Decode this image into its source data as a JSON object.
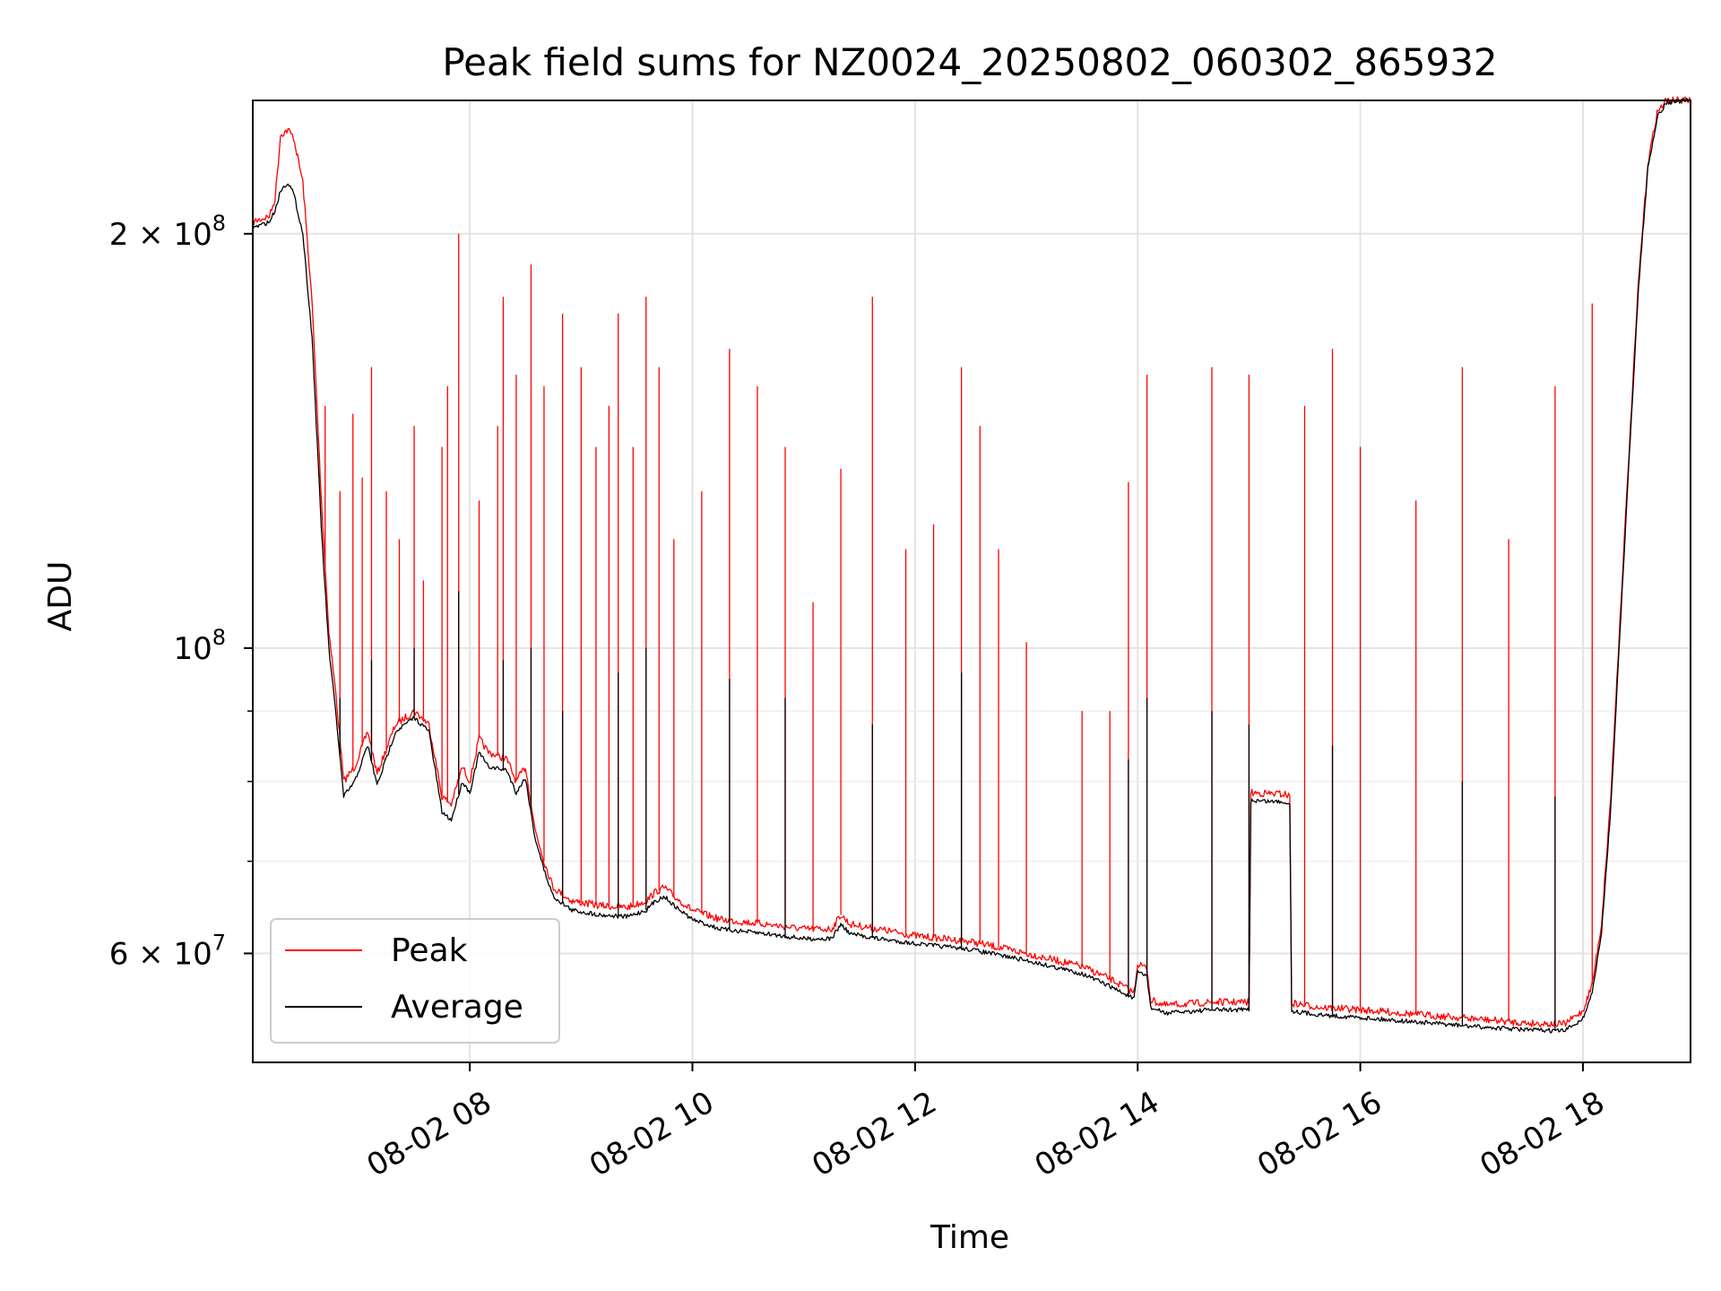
{
  "chart_data": {
    "type": "line",
    "title": "Peak field sums for NZ0024_20250802_060302_865932",
    "xlabel": "Time",
    "ylabel": "ADU",
    "yscale": "log",
    "grid": true,
    "legend_placement": "lower-left",
    "xlim": [
      "2025-08-02 06:03",
      "2025-08-02 18:58"
    ],
    "ylim": [
      50000000,
      250000000
    ],
    "x_ticks": [
      {
        "value": "2025-08-02 08:00",
        "label": "08-02 08"
      },
      {
        "value": "2025-08-02 10:00",
        "label": "08-02 10"
      },
      {
        "value": "2025-08-02 12:00",
        "label": "08-02 12"
      },
      {
        "value": "2025-08-02 14:00",
        "label": "08-02 14"
      },
      {
        "value": "2025-08-02 16:00",
        "label": "08-02 16"
      },
      {
        "value": "2025-08-02 18:00",
        "label": "08-02 18"
      }
    ],
    "y_ticks": [
      {
        "value": 60000000,
        "label": "6 × 10",
        "exp": "7"
      },
      {
        "value": 100000000,
        "label": "10",
        "exp": "8"
      },
      {
        "value": 200000000,
        "label": "2 × 10",
        "exp": "8"
      }
    ],
    "series": [
      {
        "name": "Peak",
        "color": "#ff0000",
        "points": [
          [
            "2025-08-02 06:03",
            204000000
          ],
          [
            "2025-08-02 06:12",
            206000000
          ],
          [
            "2025-08-02 06:15",
            212000000
          ],
          [
            "2025-08-02 06:18",
            236000000
          ],
          [
            "2025-08-02 06:22",
            238000000
          ],
          [
            "2025-08-02 06:25",
            235000000
          ],
          [
            "2025-08-02 06:30",
            218000000
          ],
          [
            "2025-08-02 06:35",
            178000000
          ],
          [
            "2025-08-02 06:40",
            128000000
          ],
          [
            "2025-08-02 06:44",
            103000000
          ],
          [
            "2025-08-02 06:48",
            92000000
          ],
          [
            "2025-08-02 06:52",
            80000000
          ],
          [
            "2025-08-02 06:58",
            82000000
          ],
          [
            "2025-08-02 07:05",
            87000000
          ],
          [
            "2025-08-02 07:10",
            81000000
          ],
          [
            "2025-08-02 07:20",
            88000000
          ],
          [
            "2025-08-02 07:30",
            90000000
          ],
          [
            "2025-08-02 07:38",
            88000000
          ],
          [
            "2025-08-02 07:45",
            78000000
          ],
          [
            "2025-08-02 07:50",
            77000000
          ],
          [
            "2025-08-02 07:56",
            82000000
          ],
          [
            "2025-08-02 08:00",
            80000000
          ],
          [
            "2025-08-02 08:05",
            86000000
          ],
          [
            "2025-08-02 08:10",
            84000000
          ],
          [
            "2025-08-02 08:20",
            83000000
          ],
          [
            "2025-08-02 08:25",
            80000000
          ],
          [
            "2025-08-02 08:30",
            82000000
          ],
          [
            "2025-08-02 08:35",
            74000000
          ],
          [
            "2025-08-02 08:40",
            70000000
          ],
          [
            "2025-08-02 08:45",
            67000000
          ],
          [
            "2025-08-02 08:55",
            65500000
          ],
          [
            "2025-08-02 09:10",
            65000000
          ],
          [
            "2025-08-02 09:25",
            64800000
          ],
          [
            "2025-08-02 09:35",
            65500000
          ],
          [
            "2025-08-02 09:40",
            66500000
          ],
          [
            "2025-08-02 09:45",
            67000000
          ],
          [
            "2025-08-02 09:50",
            66000000
          ],
          [
            "2025-08-02 10:00",
            64500000
          ],
          [
            "2025-08-02 10:15",
            63500000
          ],
          [
            "2025-08-02 10:40",
            63000000
          ],
          [
            "2025-08-02 11:00",
            62500000
          ],
          [
            "2025-08-02 11:15",
            62500000
          ],
          [
            "2025-08-02 11:20",
            64000000
          ],
          [
            "2025-08-02 11:25",
            63000000
          ],
          [
            "2025-08-02 11:40",
            62500000
          ],
          [
            "2025-08-02 12:00",
            61800000
          ],
          [
            "2025-08-02 12:30",
            61200000
          ],
          [
            "2025-08-02 13:00",
            60000000
          ],
          [
            "2025-08-02 13:30",
            58700000
          ],
          [
            "2025-08-02 13:45",
            57500000
          ],
          [
            "2025-08-02 13:58",
            56200000
          ],
          [
            "2025-08-02 14:00",
            59000000
          ],
          [
            "2025-08-02 14:05",
            58500000
          ],
          [
            "2025-08-02 14:07",
            55500000
          ],
          [
            "2025-08-02 14:15",
            55000000
          ],
          [
            "2025-08-02 14:40",
            55300000
          ],
          [
            "2025-08-02 15:00",
            55300000
          ],
          [
            "2025-08-02 15:01",
            78500000
          ],
          [
            "2025-08-02 15:20",
            78300000
          ],
          [
            "2025-08-02 15:22",
            78000000
          ],
          [
            "2025-08-02 15:23",
            55200000
          ],
          [
            "2025-08-02 15:40",
            54800000
          ],
          [
            "2025-08-02 16:00",
            54600000
          ],
          [
            "2025-08-02 16:30",
            54200000
          ],
          [
            "2025-08-02 17:00",
            53800000
          ],
          [
            "2025-08-02 17:30",
            53400000
          ],
          [
            "2025-08-02 17:50",
            53300000
          ],
          [
            "2025-08-02 18:00",
            54500000
          ],
          [
            "2025-08-02 18:05",
            57000000
          ],
          [
            "2025-08-02 18:10",
            63000000
          ],
          [
            "2025-08-02 18:15",
            78000000
          ],
          [
            "2025-08-02 18:20",
            105000000
          ],
          [
            "2025-08-02 18:25",
            140000000
          ],
          [
            "2025-08-02 18:30",
            185000000
          ],
          [
            "2025-08-02 18:35",
            225000000
          ],
          [
            "2025-08-02 18:40",
            245000000
          ],
          [
            "2025-08-02 18:45",
            250000000
          ],
          [
            "2025-08-02 18:58",
            250000000
          ]
        ],
        "spikes": [
          [
            "2025-08-02 06:42",
            150000000
          ],
          [
            "2025-08-02 06:50",
            130000000
          ],
          [
            "2025-08-02 06:57",
            148000000
          ],
          [
            "2025-08-02 07:02",
            133000000
          ],
          [
            "2025-08-02 07:07",
            160000000
          ],
          [
            "2025-08-02 07:15",
            130000000
          ],
          [
            "2025-08-02 07:22",
            120000000
          ],
          [
            "2025-08-02 07:30",
            145000000
          ],
          [
            "2025-08-02 07:35",
            112000000
          ],
          [
            "2025-08-02 07:45",
            140000000
          ],
          [
            "2025-08-02 07:48",
            155000000
          ],
          [
            "2025-08-02 07:54",
            200000000
          ],
          [
            "2025-08-02 08:05",
            128000000
          ],
          [
            "2025-08-02 08:15",
            145000000
          ],
          [
            "2025-08-02 08:18",
            180000000
          ],
          [
            "2025-08-02 08:25",
            158000000
          ],
          [
            "2025-08-02 08:33",
            190000000
          ],
          [
            "2025-08-02 08:40",
            155000000
          ],
          [
            "2025-08-02 08:50",
            175000000
          ],
          [
            "2025-08-02 09:00",
            160000000
          ],
          [
            "2025-08-02 09:08",
            140000000
          ],
          [
            "2025-08-02 09:15",
            150000000
          ],
          [
            "2025-08-02 09:20",
            175000000
          ],
          [
            "2025-08-02 09:28",
            140000000
          ],
          [
            "2025-08-02 09:35",
            180000000
          ],
          [
            "2025-08-02 09:42",
            160000000
          ],
          [
            "2025-08-02 09:50",
            120000000
          ],
          [
            "2025-08-02 10:05",
            130000000
          ],
          [
            "2025-08-02 10:20",
            165000000
          ],
          [
            "2025-08-02 10:35",
            155000000
          ],
          [
            "2025-08-02 10:50",
            140000000
          ],
          [
            "2025-08-02 11:05",
            108000000
          ],
          [
            "2025-08-02 11:20",
            135000000
          ],
          [
            "2025-08-02 11:37",
            180000000
          ],
          [
            "2025-08-02 11:55",
            118000000
          ],
          [
            "2025-08-02 12:10",
            123000000
          ],
          [
            "2025-08-02 12:25",
            160000000
          ],
          [
            "2025-08-02 12:35",
            145000000
          ],
          [
            "2025-08-02 12:45",
            118000000
          ],
          [
            "2025-08-02 13:00",
            101000000
          ],
          [
            "2025-08-02 13:30",
            90000000
          ],
          [
            "2025-08-02 13:45",
            90000000
          ],
          [
            "2025-08-02 13:55",
            132000000
          ],
          [
            "2025-08-02 14:05",
            158000000
          ],
          [
            "2025-08-02 14:40",
            160000000
          ],
          [
            "2025-08-02 15:00",
            158000000
          ],
          [
            "2025-08-02 15:30",
            150000000
          ],
          [
            "2025-08-02 15:45",
            165000000
          ],
          [
            "2025-08-02 16:00",
            140000000
          ],
          [
            "2025-08-02 16:30",
            128000000
          ],
          [
            "2025-08-02 16:55",
            160000000
          ],
          [
            "2025-08-02 17:20",
            120000000
          ],
          [
            "2025-08-02 17:45",
            155000000
          ],
          [
            "2025-08-02 18:05",
            178000000
          ]
        ]
      },
      {
        "name": "Average",
        "color": "#000000",
        "points": [
          [
            "2025-08-02 06:03",
            202000000
          ],
          [
            "2025-08-02 06:12",
            204000000
          ],
          [
            "2025-08-02 06:15",
            208000000
          ],
          [
            "2025-08-02 06:18",
            215000000
          ],
          [
            "2025-08-02 06:22",
            218000000
          ],
          [
            "2025-08-02 06:25",
            214000000
          ],
          [
            "2025-08-02 06:30",
            200000000
          ],
          [
            "2025-08-02 06:35",
            168000000
          ],
          [
            "2025-08-02 06:40",
            122000000
          ],
          [
            "2025-08-02 06:44",
            100000000
          ],
          [
            "2025-08-02 06:48",
            89000000
          ],
          [
            "2025-08-02 06:52",
            78000000
          ],
          [
            "2025-08-02 06:58",
            80000000
          ],
          [
            "2025-08-02 07:05",
            85000000
          ],
          [
            "2025-08-02 07:10",
            79500000
          ],
          [
            "2025-08-02 07:20",
            87000000
          ],
          [
            "2025-08-02 07:30",
            89000000
          ],
          [
            "2025-08-02 07:38",
            87000000
          ],
          [
            "2025-08-02 07:45",
            76000000
          ],
          [
            "2025-08-02 07:50",
            75000000
          ],
          [
            "2025-08-02 07:56",
            80000000
          ],
          [
            "2025-08-02 08:00",
            78500000
          ],
          [
            "2025-08-02 08:05",
            84000000
          ],
          [
            "2025-08-02 08:10",
            82000000
          ],
          [
            "2025-08-02 08:20",
            81500000
          ],
          [
            "2025-08-02 08:25",
            78500000
          ],
          [
            "2025-08-02 08:30",
            80500000
          ],
          [
            "2025-08-02 08:35",
            73000000
          ],
          [
            "2025-08-02 08:40",
            69000000
          ],
          [
            "2025-08-02 08:45",
            66000000
          ],
          [
            "2025-08-02 08:55",
            64500000
          ],
          [
            "2025-08-02 09:10",
            64000000
          ],
          [
            "2025-08-02 09:25",
            63800000
          ],
          [
            "2025-08-02 09:35",
            64500000
          ],
          [
            "2025-08-02 09:40",
            65500000
          ],
          [
            "2025-08-02 09:45",
            66000000
          ],
          [
            "2025-08-02 09:50",
            65000000
          ],
          [
            "2025-08-02 10:00",
            63500000
          ],
          [
            "2025-08-02 10:15",
            62500000
          ],
          [
            "2025-08-02 10:40",
            62000000
          ],
          [
            "2025-08-02 11:00",
            61500000
          ],
          [
            "2025-08-02 11:15",
            61500000
          ],
          [
            "2025-08-02 11:20",
            63000000
          ],
          [
            "2025-08-02 11:25",
            62000000
          ],
          [
            "2025-08-02 11:40",
            61500000
          ],
          [
            "2025-08-02 12:00",
            61000000
          ],
          [
            "2025-08-02 12:30",
            60400000
          ],
          [
            "2025-08-02 13:00",
            59300000
          ],
          [
            "2025-08-02 13:30",
            58000000
          ],
          [
            "2025-08-02 13:45",
            56800000
          ],
          [
            "2025-08-02 13:58",
            55600000
          ],
          [
            "2025-08-02 14:00",
            58200000
          ],
          [
            "2025-08-02 14:05",
            57800000
          ],
          [
            "2025-08-02 14:07",
            54800000
          ],
          [
            "2025-08-02 14:15",
            54300000
          ],
          [
            "2025-08-02 14:40",
            54600000
          ],
          [
            "2025-08-02 15:00",
            54600000
          ],
          [
            "2025-08-02 15:01",
            77500000
          ],
          [
            "2025-08-02 15:20",
            77300000
          ],
          [
            "2025-08-02 15:22",
            77000000
          ],
          [
            "2025-08-02 15:23",
            54500000
          ],
          [
            "2025-08-02 15:40",
            54100000
          ],
          [
            "2025-08-02 16:00",
            53900000
          ],
          [
            "2025-08-02 16:30",
            53500000
          ],
          [
            "2025-08-02 17:00",
            53100000
          ],
          [
            "2025-08-02 17:30",
            52800000
          ],
          [
            "2025-08-02 17:50",
            52700000
          ],
          [
            "2025-08-02 18:00",
            53800000
          ],
          [
            "2025-08-02 18:05",
            56200000
          ],
          [
            "2025-08-02 18:10",
            62000000
          ],
          [
            "2025-08-02 18:15",
            76500000
          ],
          [
            "2025-08-02 18:20",
            103000000
          ],
          [
            "2025-08-02 18:25",
            138000000
          ],
          [
            "2025-08-02 18:30",
            183000000
          ],
          [
            "2025-08-02 18:35",
            223000000
          ],
          [
            "2025-08-02 18:40",
            243000000
          ],
          [
            "2025-08-02 18:45",
            249000000
          ],
          [
            "2025-08-02 18:58",
            250000000
          ]
        ],
        "spikes": [
          [
            "2025-08-02 06:50",
            92000000
          ],
          [
            "2025-08-02 07:07",
            98000000
          ],
          [
            "2025-08-02 07:30",
            100000000
          ],
          [
            "2025-08-02 07:54",
            110000000
          ],
          [
            "2025-08-02 08:18",
            98000000
          ],
          [
            "2025-08-02 08:33",
            100000000
          ],
          [
            "2025-08-02 08:50",
            90000000
          ],
          [
            "2025-08-02 09:20",
            96000000
          ],
          [
            "2025-08-02 09:35",
            100000000
          ],
          [
            "2025-08-02 10:20",
            95000000
          ],
          [
            "2025-08-02 10:50",
            92000000
          ],
          [
            "2025-08-02 11:37",
            88000000
          ],
          [
            "2025-08-02 12:25",
            96000000
          ],
          [
            "2025-08-02 13:55",
            83000000
          ],
          [
            "2025-08-02 14:05",
            92000000
          ],
          [
            "2025-08-02 14:40",
            90000000
          ],
          [
            "2025-08-02 15:00",
            88000000
          ],
          [
            "2025-08-02 15:45",
            85000000
          ],
          [
            "2025-08-02 16:55",
            80000000
          ],
          [
            "2025-08-02 17:45",
            78000000
          ]
        ]
      }
    ]
  }
}
